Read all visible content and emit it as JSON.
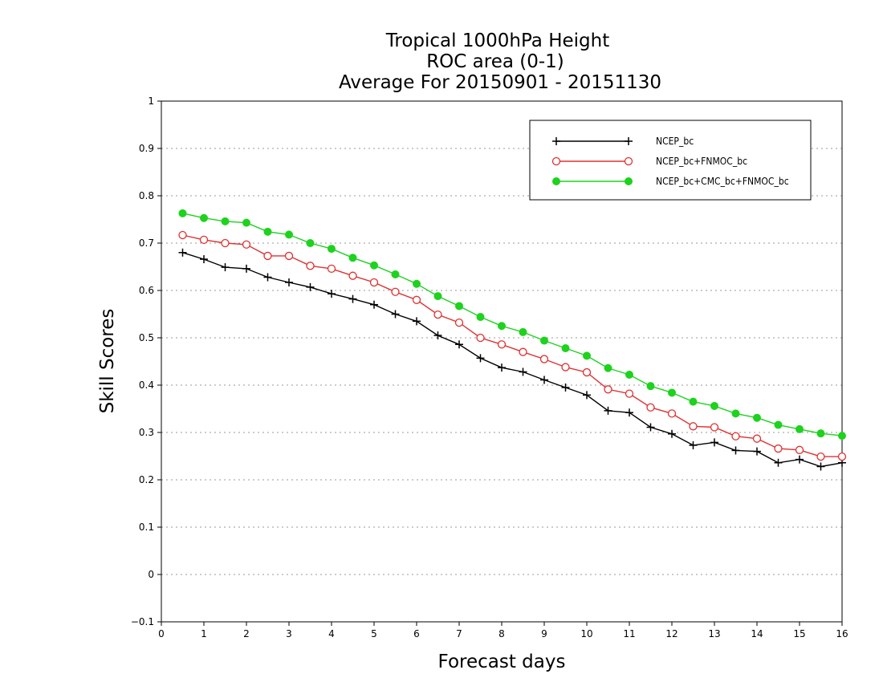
{
  "chart_data": {
    "type": "line",
    "title": [
      "Tropical 1000hPa Height",
      "ROC area (0-1)",
      "Average For 20150901 - 20151130"
    ],
    "xlabel": "Forecast days",
    "ylabel": "Skill Scores",
    "xlim": [
      0,
      16
    ],
    "ylim": [
      -0.1,
      1
    ],
    "x_ticks": [
      "0",
      "1",
      "2",
      "3",
      "4",
      "5",
      "6",
      "7",
      "8",
      "9",
      "10",
      "11",
      "12",
      "13",
      "14",
      "15",
      "16"
    ],
    "y_ticks": [
      "−0.1",
      "0",
      "0.1",
      "0.2",
      "0.3",
      "0.4",
      "0.5",
      "0.6",
      "0.7",
      "0.8",
      "0.9",
      "1"
    ],
    "grid": "horizontal-dotted",
    "legend_position": "top-right",
    "x": [
      0.5,
      1,
      1.5,
      2,
      2.5,
      3,
      3.5,
      4,
      4.5,
      5,
      5.5,
      6,
      6.5,
      7,
      7.5,
      8,
      8.5,
      9,
      9.5,
      10,
      10.5,
      11,
      11.5,
      12,
      12.5,
      13,
      13.5,
      14,
      14.5,
      15,
      15.5,
      16
    ],
    "series": [
      {
        "name": "NCEP_bc",
        "color": "#000000",
        "marker": "plus",
        "values": [
          0.68,
          0.666,
          0.649,
          0.646,
          0.628,
          0.617,
          0.607,
          0.593,
          0.582,
          0.57,
          0.55,
          0.535,
          0.505,
          0.486,
          0.457,
          0.437,
          0.428,
          0.411,
          0.395,
          0.379,
          0.346,
          0.342,
          0.311,
          0.297,
          0.273,
          0.279,
          0.262,
          0.26,
          0.236,
          0.243,
          0.228,
          0.236
        ]
      },
      {
        "name": "NCEP_bc+FNMOC_bc",
        "color": "#e03030",
        "marker": "open-circle",
        "values": [
          0.717,
          0.707,
          0.7,
          0.697,
          0.673,
          0.673,
          0.652,
          0.646,
          0.631,
          0.617,
          0.597,
          0.58,
          0.549,
          0.532,
          0.5,
          0.486,
          0.47,
          0.455,
          0.438,
          0.427,
          0.391,
          0.382,
          0.353,
          0.34,
          0.313,
          0.311,
          0.292,
          0.287,
          0.266,
          0.263,
          0.249,
          0.249
        ]
      },
      {
        "name": "NCEP_bc+CMC_bc+FNMOC_bc",
        "color": "#1ed21e",
        "marker": "filled-circle",
        "values": [
          0.763,
          0.753,
          0.746,
          0.743,
          0.724,
          0.718,
          0.7,
          0.688,
          0.669,
          0.653,
          0.634,
          0.614,
          0.588,
          0.567,
          0.544,
          0.525,
          0.512,
          0.494,
          0.478,
          0.462,
          0.436,
          0.422,
          0.398,
          0.384,
          0.365,
          0.356,
          0.34,
          0.331,
          0.316,
          0.307,
          0.298,
          0.293
        ]
      }
    ]
  }
}
